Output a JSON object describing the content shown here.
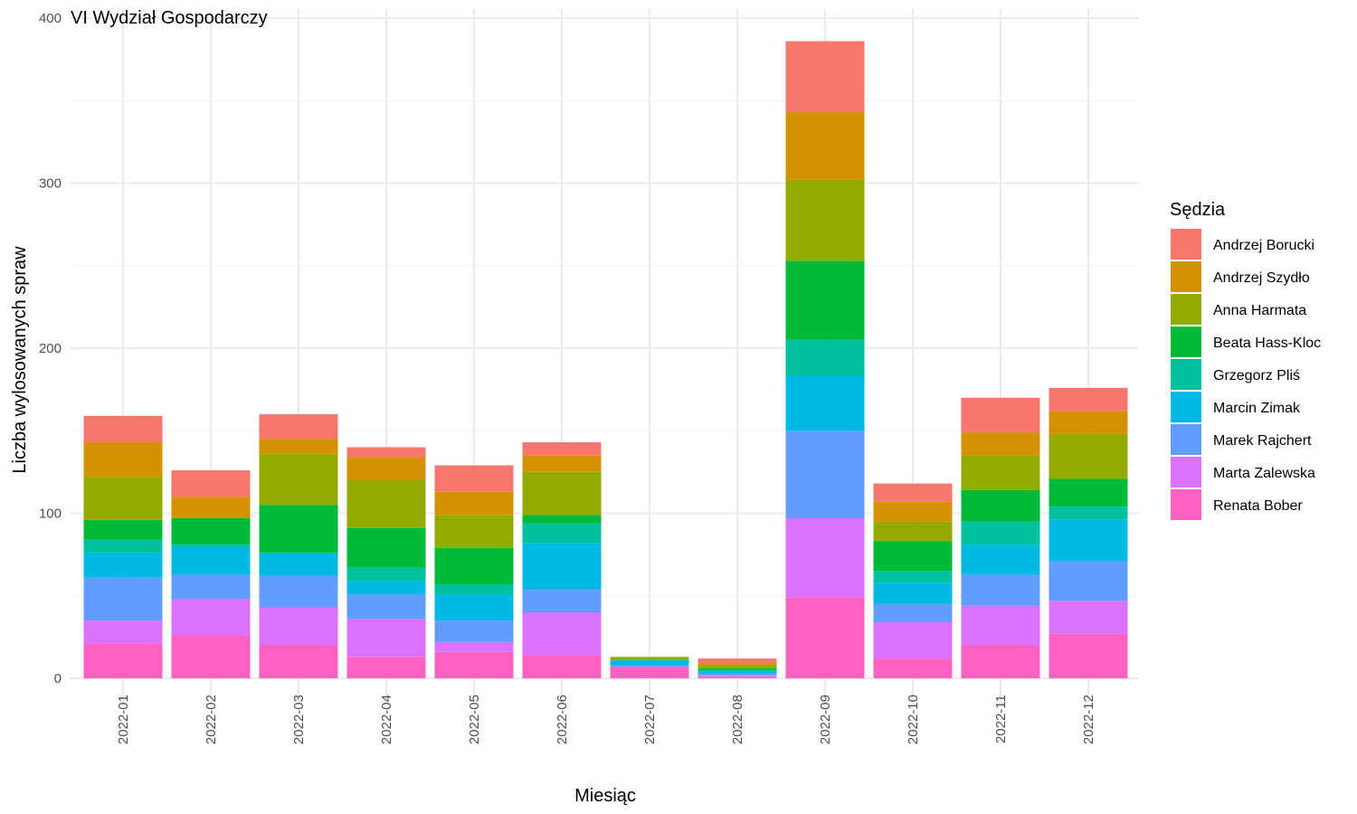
{
  "chart_data": {
    "type": "bar",
    "stacked": true,
    "title": "VI Wydział Gospodarczy",
    "xlabel": "Miesiąc",
    "ylabel": "Liczba wylosowanych spraw",
    "ylim": [
      0,
      400
    ],
    "yticks": [
      0,
      100,
      200,
      300,
      400
    ],
    "grid": true,
    "legend_title": "Sędzia",
    "legend_position": "right",
    "categories": [
      "2022-01",
      "2022-02",
      "2022-03",
      "2022-04",
      "2022-05",
      "2022-06",
      "2022-07",
      "2022-08",
      "2022-09",
      "2022-10",
      "2022-11",
      "2022-12"
    ],
    "series": [
      {
        "name": "Renata Bober",
        "color": "#FF61C3",
        "values": [
          21,
          26,
          20,
          13,
          16,
          14,
          7,
          1,
          49,
          12,
          20,
          27
        ]
      },
      {
        "name": "Marta Zalewska",
        "color": "#DB72FB",
        "values": [
          14,
          22,
          23,
          23,
          6,
          26,
          0,
          1,
          48,
          22,
          24,
          20
        ]
      },
      {
        "name": "Marek Rajchert",
        "color": "#619CFF",
        "values": [
          26,
          15,
          19,
          15,
          13,
          14,
          1,
          1,
          53,
          11,
          19,
          24
        ]
      },
      {
        "name": "Marcin Zimak",
        "color": "#00B9E3",
        "values": [
          15,
          17,
          14,
          8,
          16,
          28,
          3,
          1,
          33,
          13,
          18,
          25
        ]
      },
      {
        "name": "Grzegorz Pliś",
        "color": "#00C19F",
        "values": [
          8,
          1,
          0,
          8,
          6,
          12,
          0,
          1,
          22,
          7,
          14,
          8
        ]
      },
      {
        "name": "Beata Hass-Kloc",
        "color": "#00BA38",
        "values": [
          12,
          16,
          29,
          24,
          22,
          5,
          0,
          1,
          48,
          18,
          19,
          17
        ]
      },
      {
        "name": "Anna Harmata",
        "color": "#93AA00",
        "values": [
          26,
          0,
          31,
          29,
          20,
          26,
          2,
          2,
          49,
          12,
          21,
          27
        ]
      },
      {
        "name": "Andrzej Szydło",
        "color": "#D39200",
        "values": [
          21,
          13,
          9,
          14,
          14,
          10,
          0,
          1,
          41,
          12,
          14,
          14
        ]
      },
      {
        "name": "Andrzej Borucki",
        "color": "#F8766D",
        "values": [
          16,
          16,
          15,
          6,
          16,
          8,
          0,
          3,
          43,
          11,
          21,
          14
        ]
      }
    ]
  }
}
